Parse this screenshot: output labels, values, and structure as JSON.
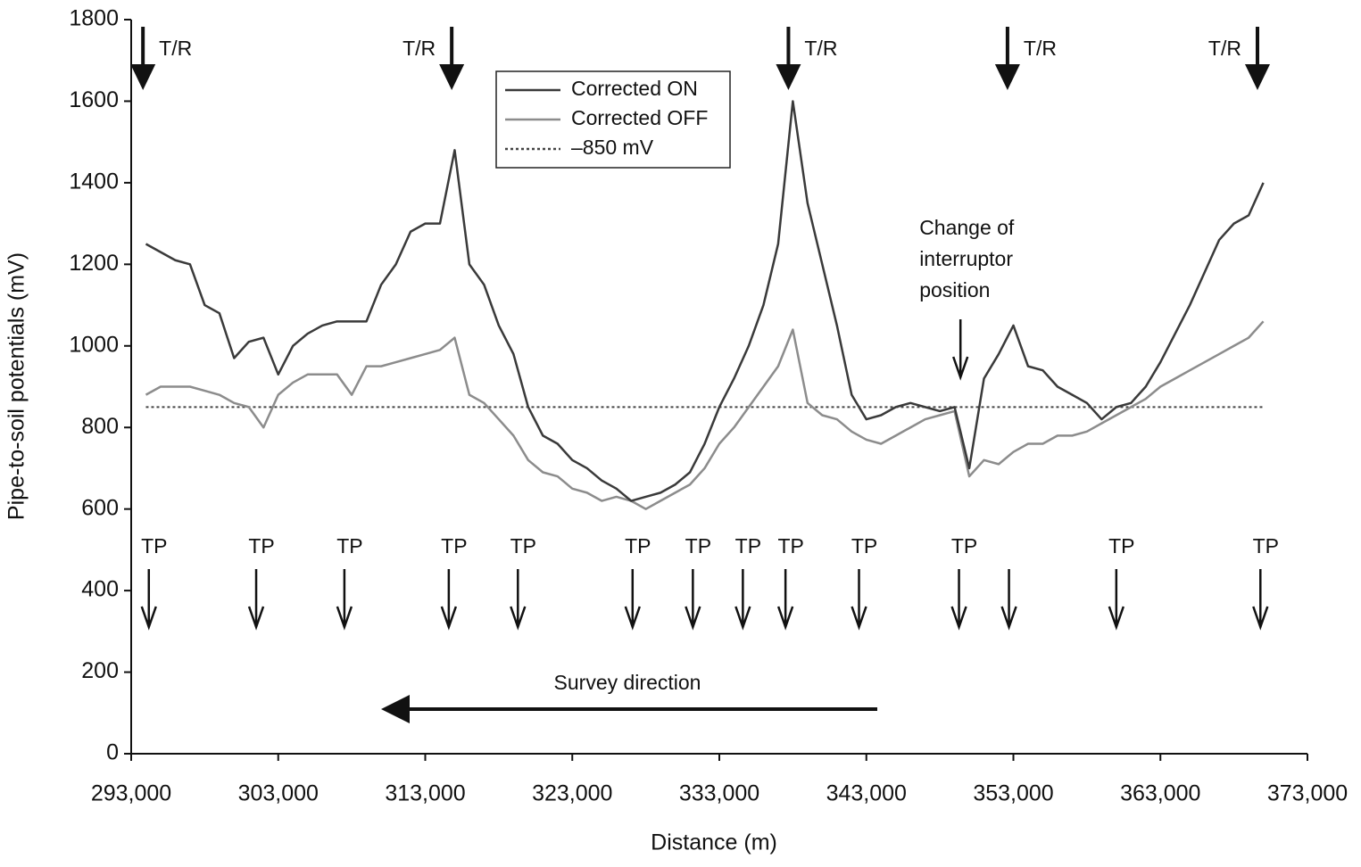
{
  "chart_data": {
    "type": "line",
    "x_label": "Distance (m)",
    "y_label": "Pipe-to-soil potentials (mV)",
    "xlim": [
      293000,
      373000
    ],
    "ylim": [
      0,
      1800
    ],
    "xticks": [
      {
        "value": 293000,
        "label": "293,000"
      },
      {
        "value": 303000,
        "label": "303,000"
      },
      {
        "value": 313000,
        "label": "313,000"
      },
      {
        "value": 323000,
        "label": "323,000"
      },
      {
        "value": 333000,
        "label": "333,000"
      },
      {
        "value": 343000,
        "label": "343,000"
      },
      {
        "value": 353000,
        "label": "353,000"
      },
      {
        "value": 363000,
        "label": "363,000"
      },
      {
        "value": 373000,
        "label": "373,000"
      }
    ],
    "yticks": [
      0,
      200,
      400,
      600,
      800,
      1000,
      1200,
      1400,
      1600,
      1800
    ],
    "x": [
      294000,
      295000,
      296000,
      297000,
      298000,
      299000,
      300000,
      301000,
      302000,
      303000,
      304000,
      305000,
      306000,
      307000,
      308000,
      309000,
      310000,
      311000,
      312000,
      313000,
      314000,
      315000,
      316000,
      317000,
      318000,
      319000,
      320000,
      321000,
      322000,
      323000,
      324000,
      325000,
      326000,
      327000,
      328000,
      329000,
      330000,
      331000,
      332000,
      333000,
      334000,
      335000,
      336000,
      337000,
      338000,
      339000,
      340000,
      341000,
      342000,
      343000,
      344000,
      345000,
      346000,
      347000,
      348000,
      349000,
      350000,
      351000,
      352000,
      353000,
      354000,
      355000,
      356000,
      357000,
      358000,
      359000,
      360000,
      361000,
      362000,
      363000,
      364000,
      365000,
      366000,
      367000,
      368000,
      369000,
      370000
    ],
    "series": [
      {
        "name": "Corrected ON",
        "color": "#3a3a3a",
        "values": [
          1250,
          1230,
          1210,
          1200,
          1100,
          1080,
          970,
          1010,
          1020,
          930,
          1000,
          1030,
          1050,
          1060,
          1060,
          1060,
          1150,
          1200,
          1280,
          1300,
          1300,
          1480,
          1200,
          1150,
          1050,
          980,
          850,
          780,
          760,
          720,
          700,
          670,
          650,
          620,
          630,
          640,
          660,
          690,
          760,
          850,
          920,
          1000,
          1100,
          1250,
          1600,
          1350,
          1200,
          1050,
          880,
          820,
          830,
          850,
          860,
          850,
          840,
          850,
          700,
          920,
          980,
          1050,
          950,
          940,
          900,
          880,
          860,
          820,
          850,
          860,
          900,
          960,
          1030,
          1100,
          1180,
          1260,
          1300,
          1320,
          1400
        ]
      },
      {
        "name": "Corrected OFF",
        "color": "#8c8c8c",
        "values": [
          880,
          900,
          900,
          900,
          890,
          880,
          860,
          850,
          800,
          880,
          910,
          930,
          930,
          930,
          880,
          950,
          950,
          960,
          970,
          980,
          990,
          1020,
          880,
          860,
          820,
          780,
          720,
          690,
          680,
          650,
          640,
          620,
          630,
          620,
          600,
          620,
          640,
          660,
          700,
          760,
          800,
          850,
          900,
          950,
          1040,
          860,
          830,
          820,
          790,
          770,
          760,
          780,
          800,
          820,
          830,
          840,
          680,
          720,
          710,
          740,
          760,
          760,
          780,
          780,
          790,
          810,
          830,
          850,
          870,
          900,
          920,
          940,
          960,
          980,
          1000,
          1020,
          1060
        ]
      }
    ],
    "reference_line": {
      "name": "–850 mV",
      "value": 850,
      "color": "#444444"
    },
    "transformer_rectifiers": [
      {
        "x": 293800,
        "label": "T/R",
        "label_side": "right"
      },
      {
        "x": 314800,
        "label": "T/R",
        "label_side": "left"
      },
      {
        "x": 337700,
        "label": "T/R",
        "label_side": "right"
      },
      {
        "x": 352600,
        "label": "T/R",
        "label_side": "right"
      },
      {
        "x": 369600,
        "label": "T/R",
        "label_side": "left"
      }
    ],
    "test_points": [
      {
        "x": 294200,
        "label": "TP"
      },
      {
        "x": 301500,
        "label": "TP"
      },
      {
        "x": 307500,
        "label": "TP"
      },
      {
        "x": 314600,
        "label": "TP"
      },
      {
        "x": 319300,
        "label": "TP"
      },
      {
        "x": 327100,
        "label": "TP"
      },
      {
        "x": 331200,
        "label": "TP"
      },
      {
        "x": 334600,
        "label": "TP"
      },
      {
        "x": 337500,
        "label": "TP"
      },
      {
        "x": 342500,
        "label": "TP"
      },
      {
        "x": 349300,
        "label": "TP"
      },
      {
        "x": 352700
      },
      {
        "x": 360000,
        "label": "TP"
      },
      {
        "x": 369800,
        "label": "TP"
      }
    ],
    "annotation": {
      "lines": [
        "Change of",
        "interruptor",
        "position"
      ],
      "x": 349400
    },
    "survey_direction": "Survey direction"
  }
}
